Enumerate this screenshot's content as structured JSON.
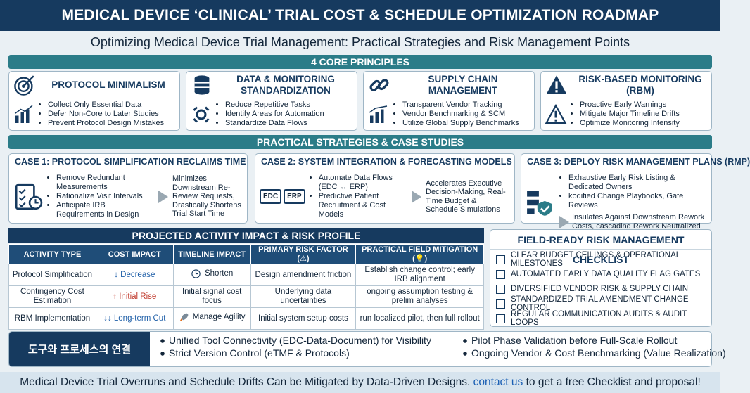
{
  "header": {
    "title": "MEDICAL DEVICE ‘CLINICAL’ TRIAL COST & SCHEDULE OPTIMIZATION ROADMAP",
    "subtitle": "Optimizing Medical Device Trial Management: Practical Strategies and Risk Management Points"
  },
  "principles": {
    "heading": "4 CORE PRINCIPLES",
    "items": [
      {
        "title": "PROTOCOL MINIMALISM",
        "bullets": [
          "Collect Only Essential Data",
          "Defer Non-Core to Later Studies",
          "Prevent Protocol Design Mistakes"
        ]
      },
      {
        "title": "DATA & MONITORING STANDARDIZATION",
        "bullets": [
          "Reduce Repetitive Tasks",
          "Identify Areas for Automation",
          "Standardize Data Flows"
        ]
      },
      {
        "title": "SUPPLY CHAIN MANAGEMENT",
        "bullets": [
          "Transparent Vendor Tracking",
          "Vendor Benchmarking & SCM",
          "Utilize Global Supply Benchmarks"
        ]
      },
      {
        "title": "RISK-BASED MONITORING (RBM)",
        "bullets": [
          "Proactive Early Warnings",
          "Mitigate Major Timeline Drifts",
          "Optimize Monitoring Intensity"
        ]
      }
    ]
  },
  "strategies": {
    "heading": "PRACTICAL STRATEGIES & CASE STUDIES",
    "cases": [
      {
        "title": "CASE 1: PROTOCOL SIMPLIFICATION RECLAIMS TIME",
        "bullets": [
          "Remove Redundant Measurements",
          "Rationalize Visit Intervals",
          "Anticipate IRB Requirements in Design"
        ],
        "result": "Minimizes Downstream Re-Review Requests, Drastically Shortens Trial Start Time"
      },
      {
        "title": "CASE 2: SYSTEM INTEGRATION & FORECASTING MODELS",
        "icon_labels": [
          "EDC",
          "ERP"
        ],
        "bullets": [
          "Automate Data Flows (EDC ↔ ERP)",
          "Predictive Patient Recruitment & Cost Models"
        ],
        "result": "Accelerates Executive Decision-Making, Real-Time Budget & Schedule Simulations"
      },
      {
        "title": "CASE 3: DEPLOY RISK MANAGEMENT PLANS (RMP)",
        "bullets": [
          "Exhaustive Early Risk Listing & Dedicated Owners",
          "kodified Change Playbooks, Gate Reviews"
        ],
        "result": "Insulates Against Downstream Rework Costs, cascading Rework Neutralized"
      }
    ]
  },
  "impact": {
    "heading": "PROJECTED ACTIVITY IMPACT & RISK PROFILE",
    "columns": [
      "ACTIVITY TYPE",
      "COST IMPACT",
      "TIMELINE IMPACT",
      "PRIMARY RISK FACTOR (⚠)",
      "PRACTICAL FIELD MITIGATION (💡)"
    ],
    "rows": [
      [
        "Protocol Simplification",
        "↓ Decrease",
        "Shorten",
        "Design amendment friction",
        "Establish change control; early IRB alignment"
      ],
      [
        "Contingency Cost Estimation",
        "↑ Initial Rise",
        "Initial signal cost focus",
        "Underlying data uncertainties",
        "ongoing assumption testing & prelim analyses"
      ],
      [
        "RBM Implementation",
        "↓↓ Long-term Cut",
        "Manage Agility",
        "Initial system setup costs",
        "run localized pilot, then full rollout"
      ]
    ]
  },
  "checklist": {
    "heading": "FIELD-READY RISK MANAGEMENT CHECKLIST",
    "items": [
      "CLEAR BUDGET CEILINGS & OPERATIONAL MILESTONES",
      "AUTOMATED EARLY DATA QUALITY FLAG GATES",
      "DIVERSIFIED VENDOR RISK & SUPPLY CHAIN",
      "STANDARDIZED TRIAL AMENDMENT CHANGE CONTROL",
      "REGULAR COMMUNICATION AUDITS & AUDIT LOOPS"
    ]
  },
  "tools": {
    "heading": "도구와 프로세스의 연결",
    "items": [
      "Unified Tool Connectivity (EDC-Data-Document) for Visibility",
      "Pilot Phase Validation before Full-Scale Rollout",
      "Strict Version Control (eTMF & Protocols)",
      "Ongoing Vendor & Cost Benchmarking (Value Realization)"
    ]
  },
  "footer": {
    "text": "Medical Device Trial Overruns and Schedule Drifts Can be Mitigated by Data-Driven Designs.",
    "link": "contact us",
    "after": "to get a free Checklist and proposal!"
  }
}
